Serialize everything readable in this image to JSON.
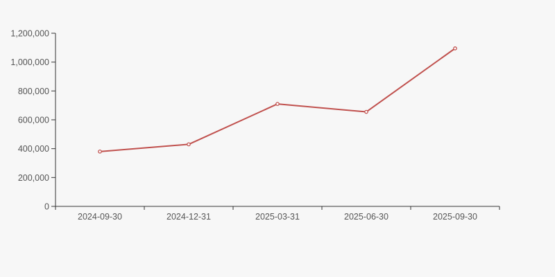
{
  "chart_data": {
    "type": "line",
    "title": "",
    "xlabel": "",
    "ylabel": "",
    "categories": [
      "2024-09-30",
      "2024-12-31",
      "2025-03-31",
      "2025-06-30",
      "2025-09-30"
    ],
    "series": [
      {
        "name": "value",
        "values": [
          380000,
          430000,
          710000,
          655000,
          1095000
        ]
      }
    ],
    "ylim": [
      0,
      1200000
    ],
    "y_ticks": [
      0,
      200000,
      400000,
      600000,
      800000,
      1000000,
      1200000
    ],
    "y_tick_labels": [
      "0",
      "200,000",
      "400,000",
      "600,000",
      "800,000",
      "1,000,000",
      "1,200,000"
    ],
    "grid": false,
    "legend_position": "none",
    "marker_style": "hollow-circle",
    "colors": {
      "line": "#c0504d",
      "marker_fill": "#ffffff",
      "axis": "#333333",
      "tick_label": "#555555",
      "background": "#f7f7f7"
    }
  }
}
